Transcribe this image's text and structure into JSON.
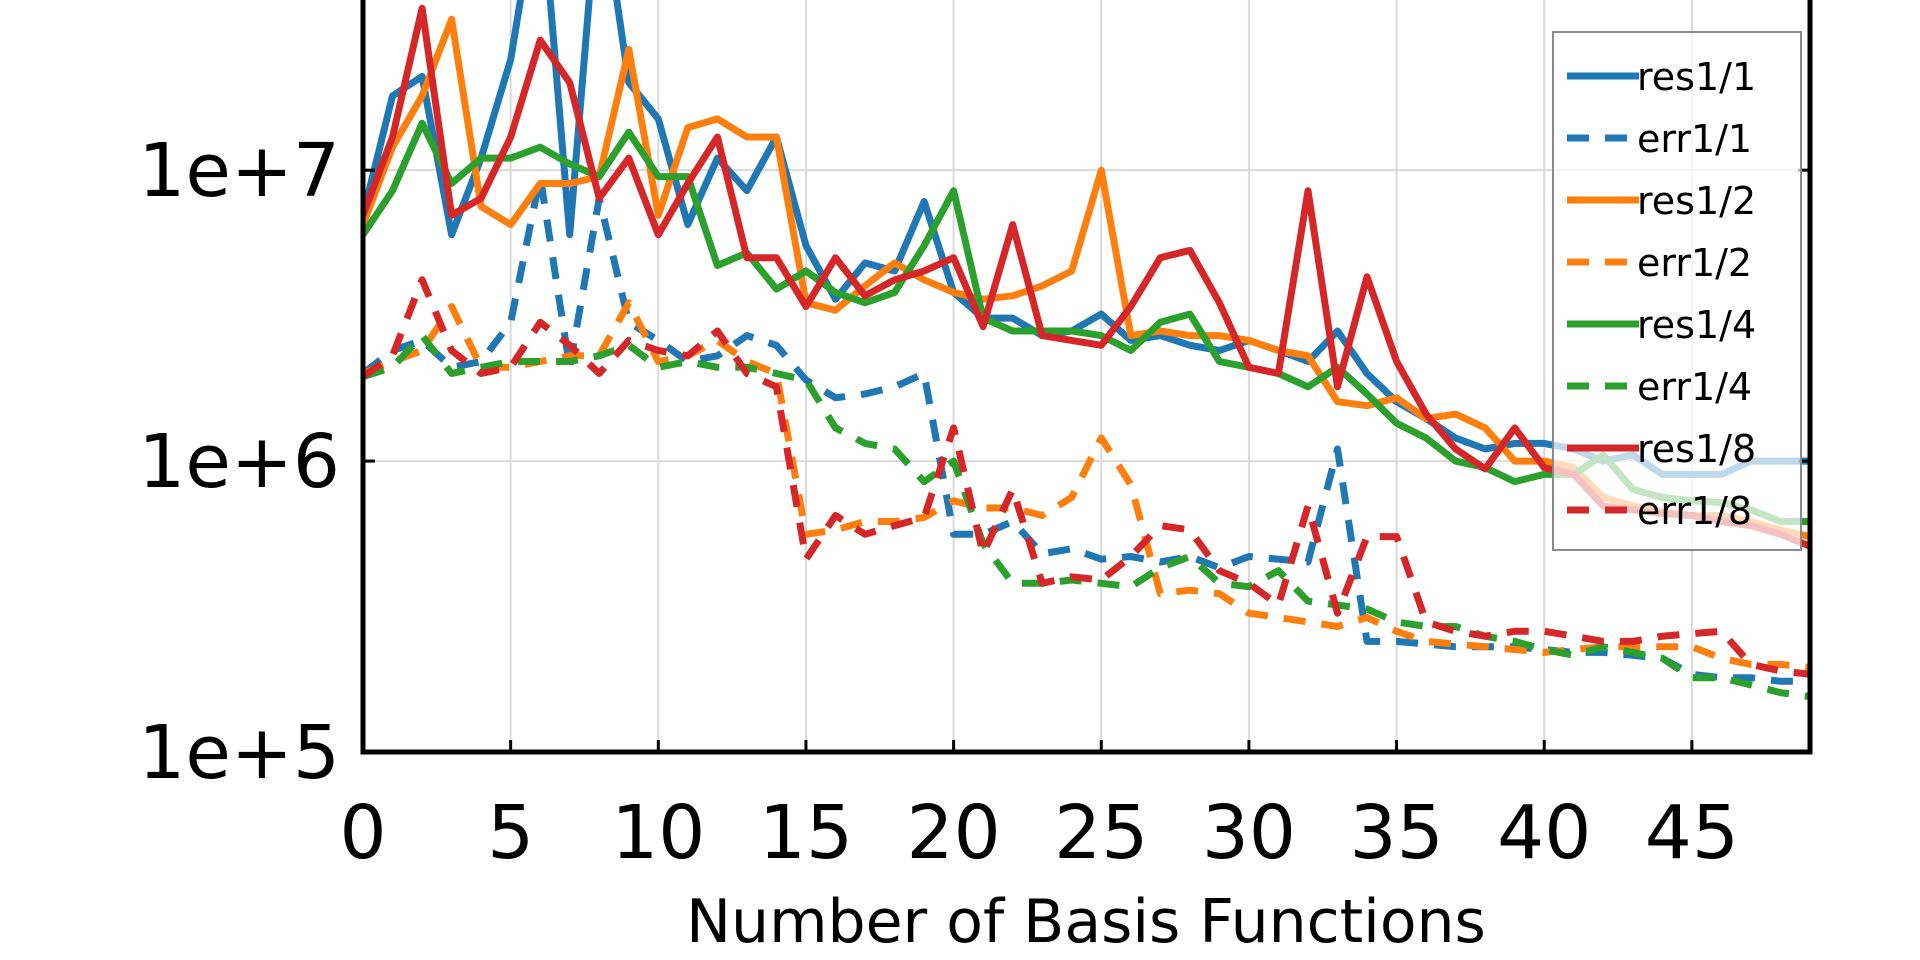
{
  "chart_data": {
    "type": "line",
    "title": "",
    "xlabel": "Number of Basis Functions",
    "ylabel": "",
    "xlim": [
      0,
      49
    ],
    "ylim": [
      100000,
      40000000
    ],
    "yscale": "log",
    "grid": true,
    "legend_position": "top-right",
    "xticks": [
      0,
      5,
      10,
      15,
      20,
      25,
      30,
      35,
      40,
      45
    ],
    "xtick_labels": [
      "0",
      "5",
      "10",
      "15",
      "20",
      "25",
      "30",
      "35",
      "40",
      "45"
    ],
    "yticks": [
      100000,
      1000000,
      10000000
    ],
    "ytick_labels": [
      "1e+5",
      "1e+6",
      "1e+7"
    ],
    "x": [
      0,
      1,
      2,
      3,
      4,
      5,
      6,
      7,
      8,
      9,
      10,
      11,
      12,
      13,
      14,
      15,
      16,
      17,
      18,
      19,
      20,
      21,
      22,
      23,
      24,
      25,
      26,
      27,
      28,
      29,
      30,
      31,
      32,
      33,
      34,
      35,
      36,
      37,
      38,
      39,
      40,
      41,
      42,
      43,
      44,
      45,
      46,
      47,
      48,
      49
    ],
    "series": [
      {
        "name": "res1/1",
        "color": "#1f77b4",
        "style": "solid",
        "values": [
          7000000,
          18000000,
          21000000,
          6000000,
          11000000,
          24000000,
          100000000,
          6000000,
          100000000,
          20000000,
          15000000,
          6500000,
          11000000,
          8500000,
          13000000,
          5500000,
          3600000,
          4800000,
          4500000,
          7800000,
          3800000,
          3100000,
          3100000,
          2700000,
          2800000,
          3200000,
          2600000,
          2700000,
          2500000,
          2400000,
          2600000,
          2400000,
          2200000,
          2800000,
          2000000,
          1600000,
          1400000,
          1200000,
          1100000,
          1150000,
          1150000,
          1100000,
          1000000,
          1050000,
          900000,
          900000,
          900000,
          1000000,
          1000000,
          1000000
        ]
      },
      {
        "name": "err1/1",
        "color": "#1f77b4",
        "style": "dashed",
        "values": [
          2000000,
          2400000,
          2600000,
          2100000,
          2200000,
          3000000,
          9500000,
          2100000,
          8000000,
          3000000,
          2600000,
          2200000,
          2300000,
          2700000,
          2500000,
          1900000,
          1650000,
          1700000,
          1800000,
          2000000,
          560000,
          560000,
          620000,
          480000,
          500000,
          460000,
          470000,
          450000,
          470000,
          430000,
          470000,
          460000,
          450000,
          1100000,
          240000,
          240000,
          235000,
          230000,
          230000,
          230000,
          225000,
          220000,
          220000,
          215000,
          210000,
          185000,
          180000,
          180000,
          175000,
          175000
        ]
      },
      {
        "name": "res1/2",
        "color": "#ff7f0e",
        "style": "solid",
        "values": [
          6500000,
          12000000,
          18000000,
          33000000,
          7500000,
          6500000,
          9000000,
          9000000,
          9500000,
          26000000,
          7000000,
          14000000,
          15000000,
          13000000,
          13000000,
          3500000,
          3300000,
          4000000,
          4800000,
          4200000,
          3800000,
          3600000,
          3700000,
          4000000,
          4500000,
          10000000,
          2700000,
          2800000,
          2700000,
          2700000,
          2600000,
          2400000,
          2300000,
          1600000,
          1550000,
          1650000,
          1400000,
          1450000,
          1300000,
          1000000,
          1000000,
          950000,
          750000,
          700000,
          670000,
          650000,
          650000,
          620000,
          580000,
          550000
        ]
      },
      {
        "name": "err1/2",
        "color": "#ff7f0e",
        "style": "dashed",
        "values": [
          2000000,
          2200000,
          2400000,
          3400000,
          2100000,
          2100000,
          2200000,
          2300000,
          2300000,
          3500000,
          2200000,
          2300000,
          2600000,
          2200000,
          2000000,
          560000,
          580000,
          620000,
          620000,
          640000,
          730000,
          690000,
          690000,
          650000,
          750000,
          1200000,
          830000,
          350000,
          360000,
          350000,
          300000,
          290000,
          280000,
          270000,
          290000,
          260000,
          240000,
          235000,
          230000,
          225000,
          220000,
          225000,
          230000,
          230000,
          230000,
          230000,
          210000,
          200000,
          200000,
          195000
        ]
      },
      {
        "name": "res1/4",
        "color": "#2ca02c",
        "style": "solid",
        "values": [
          6000000,
          8500000,
          14500000,
          9000000,
          11000000,
          11000000,
          12000000,
          10500000,
          9500000,
          13500000,
          9500000,
          9500000,
          4700000,
          5200000,
          3900000,
          4500000,
          3800000,
          3500000,
          3800000,
          5500000,
          8500000,
          3100000,
          2800000,
          2800000,
          2800000,
          2700000,
          2400000,
          3000000,
          3200000,
          2200000,
          2100000,
          2000000,
          1800000,
          2100000,
          1700000,
          1350000,
          1200000,
          1000000,
          950000,
          850000,
          900000,
          900000,
          1050000,
          800000,
          750000,
          730000,
          720000,
          680000,
          620000,
          620000
        ]
      },
      {
        "name": "err1/4",
        "color": "#2ca02c",
        "style": "dashed",
        "values": [
          1950000,
          2100000,
          2700000,
          2000000,
          2100000,
          2200000,
          2200000,
          2200000,
          2300000,
          2500000,
          2100000,
          2200000,
          2100000,
          2100000,
          2000000,
          1900000,
          1300000,
          1150000,
          1100000,
          850000,
          1000000,
          520000,
          380000,
          380000,
          390000,
          380000,
          370000,
          430000,
          470000,
          380000,
          370000,
          420000,
          330000,
          320000,
          310000,
          280000,
          270000,
          270000,
          250000,
          240000,
          225000,
          215000,
          230000,
          220000,
          210000,
          180000,
          180000,
          170000,
          160000,
          155000
        ]
      },
      {
        "name": "res1/8",
        "color": "#d62728",
        "style": "solid",
        "values": [
          7000000,
          13000000,
          36000000,
          7000000,
          8000000,
          13000000,
          28000000,
          20000000,
          8000000,
          11000000,
          6000000,
          9000000,
          13000000,
          5000000,
          5000000,
          3400000,
          5000000,
          3700000,
          4200000,
          4500000,
          5000000,
          2900000,
          6500000,
          2700000,
          2600000,
          2500000,
          3400000,
          5000000,
          5300000,
          3500000,
          2100000,
          2000000,
          8500000,
          1800000,
          4300000,
          2200000,
          1450000,
          1100000,
          940000,
          1300000,
          950000,
          900000,
          700000,
          680000,
          660000,
          650000,
          620000,
          600000,
          560000,
          510000
        ]
      },
      {
        "name": "err1/8",
        "color": "#d62728",
        "style": "dashed",
        "values": [
          1950000,
          2300000,
          4200000,
          2400000,
          2000000,
          2100000,
          3000000,
          2500000,
          2000000,
          2600000,
          2400000,
          2300000,
          2800000,
          2000000,
          1800000,
          460000,
          650000,
          560000,
          600000,
          640000,
          1300000,
          480000,
          800000,
          380000,
          400000,
          390000,
          470000,
          600000,
          580000,
          420000,
          380000,
          320000,
          700000,
          300000,
          550000,
          550000,
          280000,
          260000,
          250000,
          260000,
          260000,
          250000,
          240000,
          240000,
          250000,
          255000,
          260000,
          200000,
          190000,
          185000
        ]
      }
    ]
  }
}
